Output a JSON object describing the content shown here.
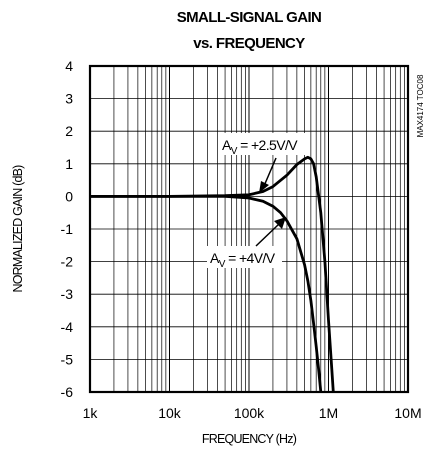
{
  "chart_data": {
    "type": "line",
    "title": "SMALL-SIGNAL GAIN",
    "subtitle": "vs. FREQUENCY",
    "xlabel": "FREQUENCY (Hz)",
    "ylabel": "NORMALIZED GAIN (dB)",
    "x_scale": "log",
    "xlim": [
      1000,
      10000000
    ],
    "ylim": [
      -6,
      4
    ],
    "x_tick_labels": [
      "1k",
      "10k",
      "100k",
      "1M",
      "10M"
    ],
    "y_tick_labels": [
      "4",
      "3",
      "2",
      "1",
      "0",
      "-1",
      "-2",
      "-3",
      "-4",
      "-5",
      "-6"
    ],
    "grid": true,
    "legend": "none",
    "code_label": "MAX4174 TOC08",
    "series": [
      {
        "name": "AV = +2.5V/V",
        "x": [
          1000,
          10000,
          50000,
          100000,
          150000,
          200000,
          300000,
          400000,
          500000,
          550000,
          600000,
          650000,
          700000,
          800000,
          900000,
          1000000,
          1100000,
          1150000
        ],
        "y": [
          0,
          0,
          0.02,
          0.05,
          0.15,
          0.3,
          0.65,
          0.98,
          1.15,
          1.2,
          1.15,
          1.0,
          0.6,
          -0.5,
          -2.0,
          -3.8,
          -5.3,
          -6
        ]
      },
      {
        "name": "AV = +4V/V",
        "x": [
          1000,
          10000,
          50000,
          100000,
          150000,
          200000,
          250000,
          300000,
          400000,
          500000,
          550000,
          600000,
          650000,
          700000,
          750000,
          800000
        ],
        "y": [
          0,
          0,
          0,
          -0.05,
          -0.15,
          -0.3,
          -0.5,
          -0.75,
          -1.3,
          -2.1,
          -2.6,
          -3.2,
          -3.9,
          -4.6,
          -5.3,
          -6
        ]
      }
    ],
    "annotations": [
      {
        "prefix": "A",
        "subscript": "V",
        "text": " = +2.5V/V",
        "series": 0
      },
      {
        "prefix": "A",
        "subscript": "V",
        "text": " = +4V/V",
        "series": 1
      }
    ]
  }
}
